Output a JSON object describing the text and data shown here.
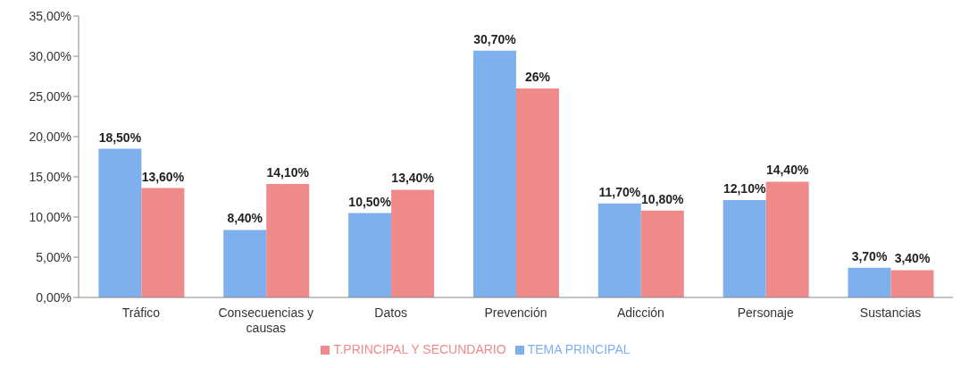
{
  "chart_data": {
    "type": "bar",
    "categories": [
      "Tráfico",
      "Consecuencias y causas",
      "Datos",
      "Prevención",
      "Adicción",
      "Personaje",
      "Sustancias"
    ],
    "series": [
      {
        "name": "TEMA PRINCIPAL",
        "color": "#7fb0ee",
        "values": [
          18.5,
          8.4,
          10.5,
          30.7,
          11.7,
          12.1,
          3.7
        ],
        "value_labels": [
          "18,50%",
          "8,40%",
          "10,50%",
          "30,70%",
          "11,70%",
          "12,10%",
          "3,70%"
        ]
      },
      {
        "name": "T.PRINCIPAL Y SECUNDARIO",
        "color": "#ee8a8a",
        "values": [
          13.6,
          14.1,
          13.4,
          26,
          10.8,
          14.4,
          3.4
        ],
        "value_labels": [
          "13,60%",
          "14,10%",
          "13,40%",
          "26%",
          "10,80%",
          "14,40%",
          "3,40%"
        ]
      }
    ],
    "ylim": [
      0,
      35
    ],
    "yticks": [
      {
        "value": 0,
        "label": "0,00%"
      },
      {
        "value": 5,
        "label": "5,00%"
      },
      {
        "value": 10,
        "label": "10,00%"
      },
      {
        "value": 15,
        "label": "15,00%"
      },
      {
        "value": 20,
        "label": "20,00%"
      },
      {
        "value": 25,
        "label": "25,00%"
      },
      {
        "value": 30,
        "label": "30,00%"
      },
      {
        "value": 35,
        "label": "35,00%"
      }
    ],
    "grid": false,
    "legend": "bottom"
  }
}
